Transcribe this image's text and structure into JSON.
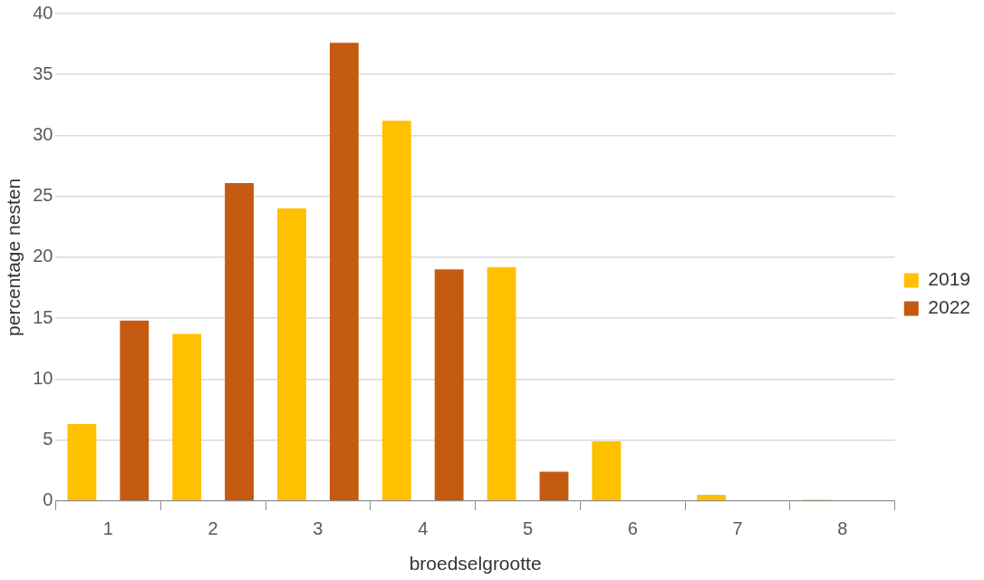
{
  "chart_data": {
    "type": "bar",
    "xlabel": "broedselgrootte",
    "ylabel": "percentage nesten",
    "categories": [
      "1",
      "2",
      "3",
      "4",
      "5",
      "6",
      "7",
      "8"
    ],
    "series": [
      {
        "name": "2019",
        "color": "#ffc000",
        "values": [
          6.3,
          13.7,
          24.0,
          31.2,
          19.2,
          4.9,
          0.5,
          0.1
        ]
      },
      {
        "name": "2022",
        "color": "#c55a11",
        "values": [
          14.8,
          26.1,
          37.6,
          19.0,
          2.4,
          0,
          0,
          0
        ]
      }
    ],
    "ylim": [
      0,
      40
    ],
    "yticks": [
      0,
      5,
      10,
      15,
      20,
      25,
      30,
      35,
      40
    ],
    "grid": "y",
    "legend": "right"
  }
}
